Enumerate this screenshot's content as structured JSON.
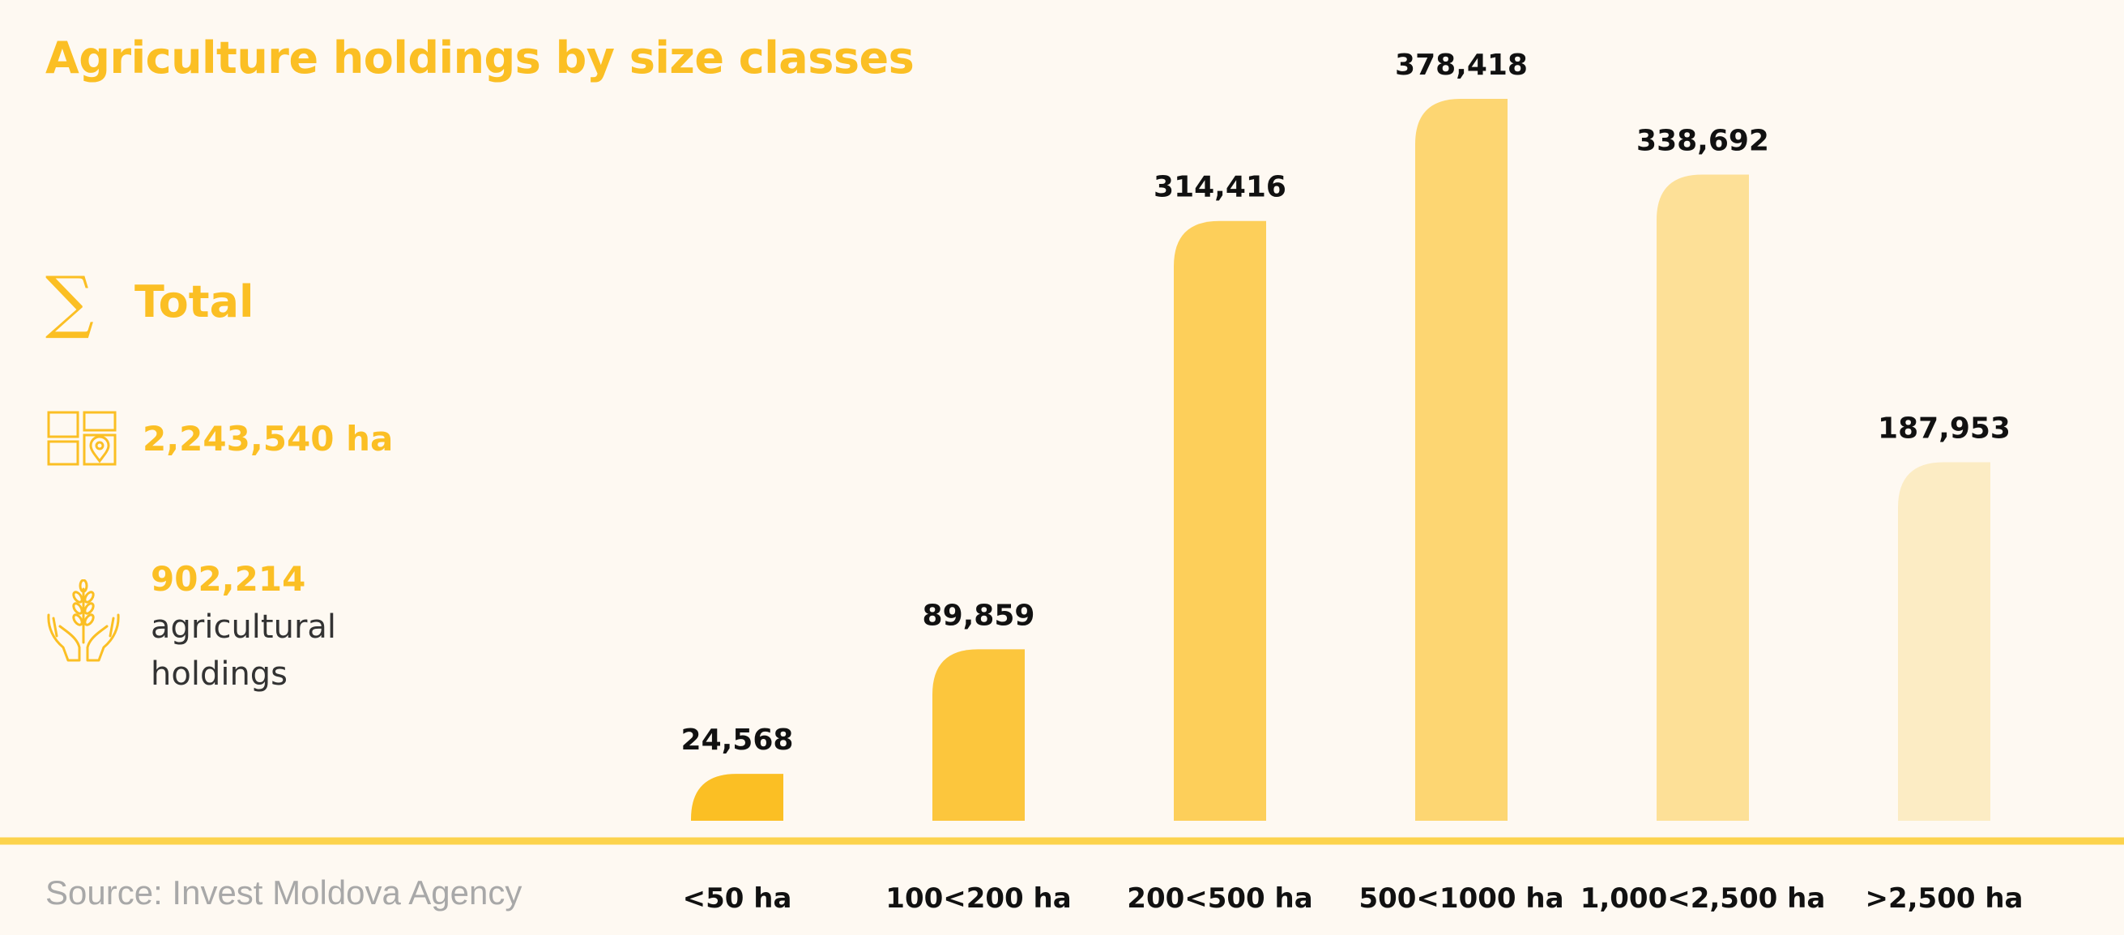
{
  "header": {
    "title": "Agriculture holdings by size classes"
  },
  "summary": {
    "total_label": "Total",
    "sigma_symbol": "∑",
    "area_value": "2,243,540 ha",
    "holdings_value": "902,214",
    "holdings_label": "agricultural holdings"
  },
  "footer": {
    "source": "Source: Invest Moldova Agency"
  },
  "colors": {
    "accent": "#fbbf24",
    "baseline": "#fcd34d",
    "bars": [
      "#fbbf24",
      "#fcc63d",
      "#fdcf5a",
      "#fdd672",
      "#fde097",
      "#fcecc4"
    ]
  },
  "chart_data": {
    "type": "bar",
    "title": "Agriculture holdings by size classes",
    "xlabel": "",
    "ylabel": "",
    "categories": [
      "<50 ha",
      "100<200 ha",
      "200<500 ha",
      "500<1000 ha",
      "1,000<2,500 ha",
      ">2,500 ha"
    ],
    "values": [
      24568,
      89859,
      314416,
      378418,
      338692,
      187953
    ],
    "value_labels": [
      "24,568",
      "89,859",
      "314,416",
      "378,418",
      "338,692",
      "187,953"
    ],
    "ylim": [
      0,
      378418
    ],
    "grid": false,
    "legend": "none"
  }
}
